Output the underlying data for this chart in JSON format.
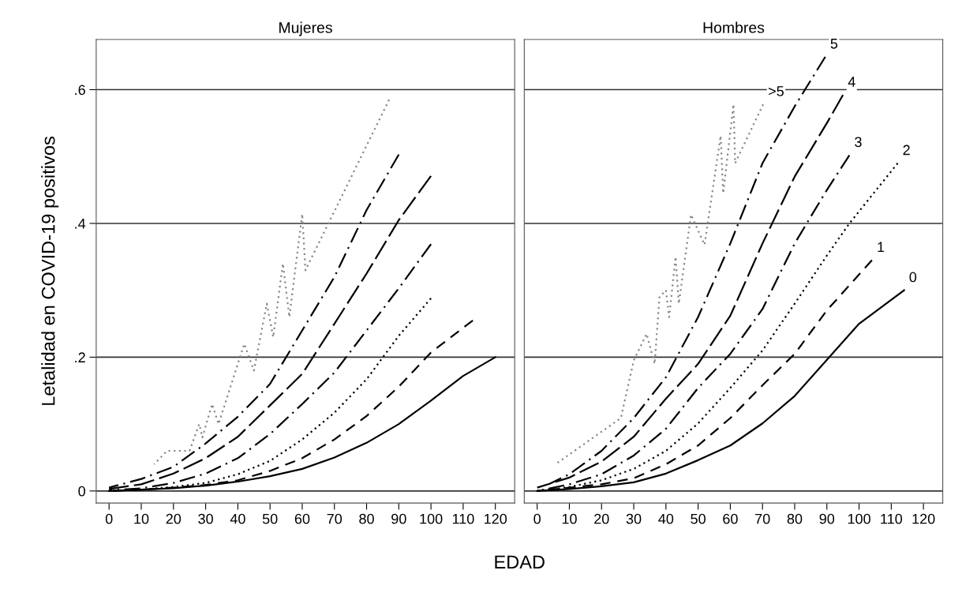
{
  "chart_data": [
    {
      "type": "line",
      "title": "Mujeres",
      "ylabel": "Letalidad en COVID-19 positivos",
      "xlabel": "EDAD",
      "xlim": [
        -4,
        126
      ],
      "xticks": [
        0,
        10,
        20,
        30,
        40,
        50,
        60,
        70,
        80,
        90,
        100,
        110,
        120
      ],
      "ylim": [
        -0.018,
        0.675
      ],
      "yticks": [
        {
          "value": 0,
          "label": "0"
        },
        {
          "value": 0.2,
          "label": ".2"
        },
        {
          "value": 0.4,
          "label": ".4"
        },
        {
          "value": 0.6,
          "label": ".6"
        }
      ],
      "grid": "y",
      "series": [
        {
          "color": "#000000",
          "line_style": "solid",
          "x": [
            0,
            10,
            20,
            30,
            40,
            50,
            60,
            70,
            80,
            90,
            100,
            110,
            120
          ],
          "values": [
            0,
            0.002,
            0.004,
            0.008,
            0.014,
            0.022,
            0.033,
            0.05,
            0.072,
            0.1,
            0.135,
            0.172,
            0.2
          ]
        },
        {
          "color": "#000000",
          "line_style": "dashed",
          "x": [
            0,
            10,
            20,
            30,
            40,
            50,
            60,
            70,
            80,
            90,
            100,
            113
          ],
          "values": [
            0,
            0.002,
            0.005,
            0.009,
            0.016,
            0.03,
            0.049,
            0.077,
            0.112,
            0.156,
            0.207,
            0.255
          ]
        },
        {
          "color": "#000000",
          "line_style": "dotted",
          "x": [
            0,
            10,
            20,
            30,
            40,
            50,
            60,
            70,
            80,
            90,
            100
          ],
          "values": [
            0,
            0.002,
            0.006,
            0.012,
            0.025,
            0.045,
            0.077,
            0.117,
            0.167,
            0.232,
            0.288
          ]
        },
        {
          "color": "#000000",
          "line_style": "dashdot",
          "x": [
            0,
            10,
            20,
            30,
            40,
            50,
            60,
            70,
            80,
            90,
            100
          ],
          "values": [
            0.001,
            0.004,
            0.012,
            0.026,
            0.049,
            0.085,
            0.13,
            0.177,
            0.24,
            0.303,
            0.369
          ]
        },
        {
          "color": "#000000",
          "line_style": "longdash",
          "x": [
            0,
            10,
            20,
            30,
            40,
            50,
            60,
            70,
            80,
            90,
            100
          ],
          "values": [
            0.003,
            0.01,
            0.026,
            0.049,
            0.081,
            0.128,
            0.175,
            0.25,
            0.325,
            0.405,
            0.471
          ]
        },
        {
          "color": "#000000",
          "line_style": "dashdot",
          "x": [
            0,
            10,
            20,
            30,
            40,
            50,
            60,
            70,
            80,
            90
          ],
          "values": [
            0.005,
            0.018,
            0.036,
            0.071,
            0.111,
            0.16,
            0.24,
            0.32,
            0.42,
            0.503
          ]
        },
        {
          "color": "#888888",
          "line_style": "dotted",
          "x": [
            14,
            18,
            25,
            28,
            29,
            32,
            34,
            42,
            45,
            49,
            51,
            54,
            56,
            60,
            61,
            87
          ],
          "values": [
            0.04,
            0.06,
            0.06,
            0.1,
            0.08,
            0.13,
            0.1,
            0.22,
            0.18,
            0.28,
            0.23,
            0.34,
            0.26,
            0.414,
            0.33,
            0.585
          ]
        }
      ]
    },
    {
      "type": "line",
      "title": "Hombres",
      "xlim": [
        -4,
        126
      ],
      "xticks": [
        0,
        10,
        20,
        30,
        40,
        50,
        60,
        70,
        80,
        90,
        100,
        110,
        120
      ],
      "ylim": [
        -0.018,
        0.675
      ],
      "yticks": [
        {
          "value": 0,
          "label": null
        },
        {
          "value": 0.2,
          "label": null
        },
        {
          "value": 0.4,
          "label": null
        },
        {
          "value": 0.6,
          "label": null
        }
      ],
      "grid": "y",
      "tick_labels": "x",
      "series": [
        {
          "name": "0",
          "color": "#000000",
          "line_style": "solid",
          "x": [
            0,
            10,
            20,
            30,
            40,
            50,
            60,
            70,
            80,
            90,
            100,
            114
          ],
          "values": [
            0,
            0.003,
            0.007,
            0.013,
            0.026,
            0.046,
            0.068,
            0.101,
            0.142,
            0.196,
            0.25,
            0.3
          ]
        },
        {
          "name": "1",
          "color": "#000000",
          "line_style": "dashed",
          "x": [
            0,
            10,
            20,
            30,
            40,
            50,
            60,
            70,
            80,
            90,
            104
          ],
          "values": [
            0,
            0.005,
            0.01,
            0.019,
            0.04,
            0.068,
            0.109,
            0.158,
            0.205,
            0.27,
            0.345
          ]
        },
        {
          "name": "2",
          "color": "#000000",
          "line_style": "dotted",
          "x": [
            0,
            10,
            20,
            30,
            40,
            50,
            60,
            70,
            80,
            90,
            97,
            112
          ],
          "values": [
            0,
            0.006,
            0.016,
            0.033,
            0.06,
            0.101,
            0.154,
            0.21,
            0.28,
            0.352,
            0.4,
            0.49
          ]
        },
        {
          "name": "3",
          "color": "#000000",
          "line_style": "dashdot",
          "x": [
            0,
            10,
            20,
            30,
            40,
            50,
            60,
            70,
            80,
            90,
            97
          ],
          "values": [
            0,
            0.01,
            0.025,
            0.053,
            0.093,
            0.154,
            0.205,
            0.272,
            0.37,
            0.45,
            0.502
          ]
        },
        {
          "name": "4",
          "color": "#000000",
          "line_style": "longdash",
          "x": [
            0,
            10,
            20,
            30,
            40,
            50,
            60,
            70,
            80,
            90,
            95
          ],
          "values": [
            0.005,
            0.02,
            0.044,
            0.081,
            0.138,
            0.19,
            0.262,
            0.37,
            0.47,
            0.55,
            0.592
          ]
        },
        {
          "name": "5",
          "color": "#000000",
          "line_style": "dashdot",
          "x": [
            4,
            10,
            20,
            30,
            40,
            50,
            60,
            70,
            80,
            89.5
          ],
          "values": [
            0.011,
            0.025,
            0.06,
            0.109,
            0.17,
            0.26,
            0.37,
            0.49,
            0.575,
            0.649
          ]
        },
        {
          "name": ">5",
          "color": "#888888",
          "line_style": "dotted",
          "x": [
            6,
            26,
            30,
            34,
            36.5,
            38,
            40,
            41,
            43,
            44,
            47.8,
            52,
            57,
            57.8,
            61,
            61.5,
            70.2
          ],
          "values": [
            0.041,
            0.109,
            0.195,
            0.235,
            0.19,
            0.29,
            0.3,
            0.26,
            0.35,
            0.28,
            0.413,
            0.368,
            0.531,
            0.445,
            0.578,
            0.49,
            0.578
          ]
        }
      ]
    }
  ]
}
